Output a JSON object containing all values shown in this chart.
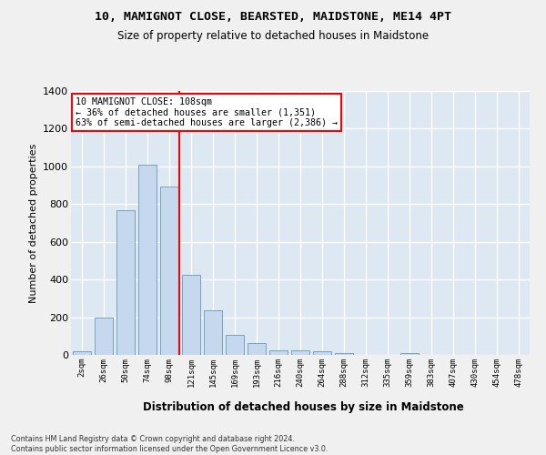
{
  "title_line1": "10, MAMIGNOT CLOSE, BEARSTED, MAIDSTONE, ME14 4PT",
  "title_line2": "Size of property relative to detached houses in Maidstone",
  "xlabel": "Distribution of detached houses by size in Maidstone",
  "ylabel": "Number of detached properties",
  "bar_color": "#c5d8ed",
  "bar_edge_color": "#6699bb",
  "bg_color": "#dde8f3",
  "grid_color": "#ffffff",
  "fig_bg_color": "#f0f0f0",
  "categories": [
    "2sqm",
    "26sqm",
    "50sqm",
    "74sqm",
    "98sqm",
    "121sqm",
    "145sqm",
    "169sqm",
    "193sqm",
    "216sqm",
    "240sqm",
    "264sqm",
    "288sqm",
    "312sqm",
    "335sqm",
    "359sqm",
    "383sqm",
    "407sqm",
    "430sqm",
    "454sqm",
    "478sqm"
  ],
  "values": [
    20,
    200,
    770,
    1010,
    893,
    425,
    235,
    107,
    65,
    25,
    25,
    18,
    8,
    0,
    0,
    12,
    0,
    0,
    0,
    0,
    0
  ],
  "ylim": [
    0,
    1400
  ],
  "yticks": [
    0,
    200,
    400,
    600,
    800,
    1000,
    1200,
    1400
  ],
  "vline_x": 4.45,
  "annotation_line1": "10 MAMIGNOT CLOSE: 108sqm",
  "annotation_line2": "← 36% of detached houses are smaller (1,351)",
  "annotation_line3": "63% of semi-detached houses are larger (2,386) →",
  "footer_line1": "Contains HM Land Registry data © Crown copyright and database right 2024.",
  "footer_line2": "Contains public sector information licensed under the Open Government Licence v3.0."
}
